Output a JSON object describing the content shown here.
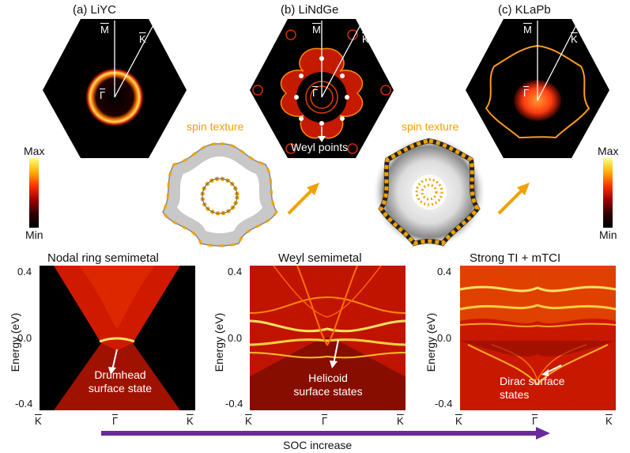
{
  "panels": [
    {
      "label": "(a)  LiYC",
      "M": "M",
      "K": "K",
      "G": "Γ"
    },
    {
      "label": "(b)  LiNdGe",
      "M": "M",
      "K": "K",
      "G": "Γ",
      "note": "Weyl points"
    },
    {
      "label": "(c)  KLaPb",
      "M": "M",
      "K": "K",
      "G": "Γ"
    }
  ],
  "spin_texture": "spin texture",
  "colorbar": {
    "max": "Max",
    "min": "Min"
  },
  "bands": [
    {
      "title": "Nodal  ring  semimetal",
      "annotation": "Drumhead\nsurface state",
      "ticks": [
        "K",
        "Γ",
        "K"
      ]
    },
    {
      "title": "Weyl semimetal",
      "annotation": "Helicoid\nsurface states",
      "ticks": [
        "K",
        "Γ",
        "K"
      ]
    },
    {
      "title": "Strong TI + mTCI",
      "annotation": "Dirac surface\nstates",
      "ticks": [
        "K",
        "Γ",
        "K"
      ]
    }
  ],
  "yaxis": {
    "label": "Energy (eV)",
    "ticks": [
      "0.4",
      "0.0",
      "-0.4"
    ]
  },
  "soc": "SOC increase",
  "colors": {
    "accent": "#f0a100",
    "arrow": "#6a2a9a"
  }
}
